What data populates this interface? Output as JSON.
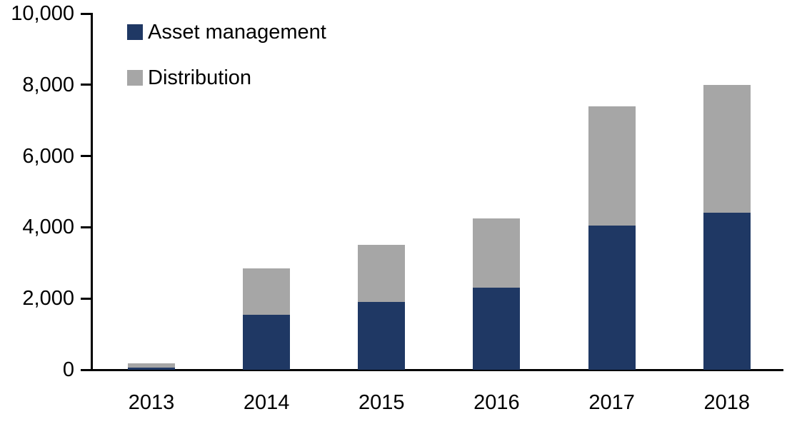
{
  "chart_data": {
    "type": "bar",
    "stacked": true,
    "title": "",
    "xlabel": "",
    "ylabel": "",
    "grid": false,
    "legend_position": "top-left",
    "background_color": "#FFFFFF",
    "axis_color": "#000000",
    "text_color": "#000000",
    "categories": [
      "2013",
      "2014",
      "2015",
      "2016",
      "2017",
      "2018"
    ],
    "series": [
      {
        "name": "Asset management",
        "color": "#1F3864",
        "values": [
          70,
          1550,
          1900,
          2300,
          4050,
          4400
        ]
      },
      {
        "name": "Distribution",
        "color": "#A6A6A6",
        "values": [
          110,
          1300,
          1600,
          1950,
          3350,
          3600
        ]
      }
    ],
    "stacked_totals": [
      180,
      2850,
      3500,
      4250,
      7400,
      8000
    ],
    "ylim": [
      0,
      10000
    ],
    "y_ticks": [
      {
        "value": 0,
        "label": "0"
      },
      {
        "value": 2000,
        "label": "2,000"
      },
      {
        "value": 4000,
        "label": "4,000"
      },
      {
        "value": 6000,
        "label": "6,000"
      },
      {
        "value": 8000,
        "label": "8,000"
      },
      {
        "value": 10000,
        "label": "10,000"
      }
    ]
  }
}
